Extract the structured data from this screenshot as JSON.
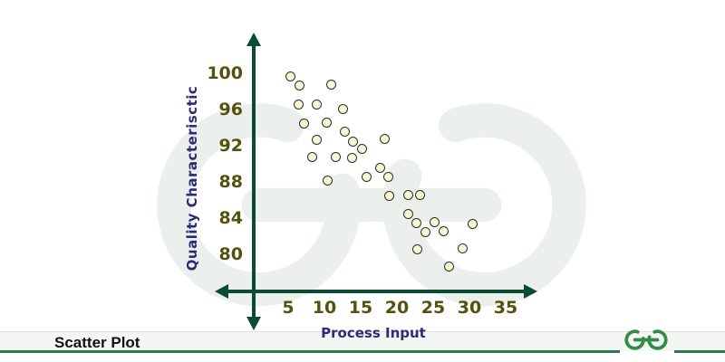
{
  "page": {
    "footer_label": "Scatter Plot",
    "brand_logo": "geeksforgeeks-logo",
    "watermark": "geeksforgeeks-watermark"
  },
  "colors": {
    "axis": "#0c4a33",
    "tick_text": "#53530f",
    "axis_title_text": "#2b2b78",
    "point_fill": "#f7f8d3",
    "point_stroke": "#2d2d2d",
    "footer_line": "#2d7a4e",
    "brand_green": "#2f8d46",
    "footer_text": "#111111"
  },
  "chart_data": {
    "type": "scatter",
    "title": "Scatter Plot",
    "xlabel": "Process Input",
    "ylabel": "Quality Characterisctic",
    "xticks": [
      5,
      10,
      15,
      20,
      25,
      30,
      35
    ],
    "yticks": [
      100,
      96,
      92,
      88,
      84,
      80
    ],
    "xlim": [
      0,
      38
    ],
    "ylim": [
      76,
      102
    ],
    "grid": false,
    "legend": "none",
    "marker": {
      "shape": "circle",
      "fill": "#f7f8d3",
      "stroke": "#2d2d2d"
    },
    "points": [
      [
        5.4,
        99.6
      ],
      [
        6.6,
        98.6
      ],
      [
        11.0,
        98.7
      ],
      [
        6.5,
        96.5
      ],
      [
        9.0,
        96.5
      ],
      [
        12.6,
        96.0
      ],
      [
        7.3,
        94.4
      ],
      [
        10.4,
        94.5
      ],
      [
        12.9,
        93.5
      ],
      [
        9.0,
        92.6
      ],
      [
        14.0,
        92.4
      ],
      [
        18.4,
        92.7
      ],
      [
        15.3,
        91.6
      ],
      [
        8.4,
        90.7
      ],
      [
        11.6,
        90.7
      ],
      [
        13.9,
        90.6
      ],
      [
        17.8,
        89.5
      ],
      [
        15.9,
        88.5
      ],
      [
        18.9,
        88.5
      ],
      [
        10.5,
        88.1
      ],
      [
        19.0,
        86.4
      ],
      [
        21.6,
        86.5
      ],
      [
        23.3,
        86.5
      ],
      [
        21.6,
        84.4
      ],
      [
        22.8,
        83.4
      ],
      [
        25.3,
        83.5
      ],
      [
        24.0,
        82.4
      ],
      [
        26.5,
        82.5
      ],
      [
        30.5,
        83.3
      ],
      [
        22.9,
        80.5
      ],
      [
        29.1,
        80.6
      ],
      [
        27.3,
        78.6
      ]
    ]
  }
}
